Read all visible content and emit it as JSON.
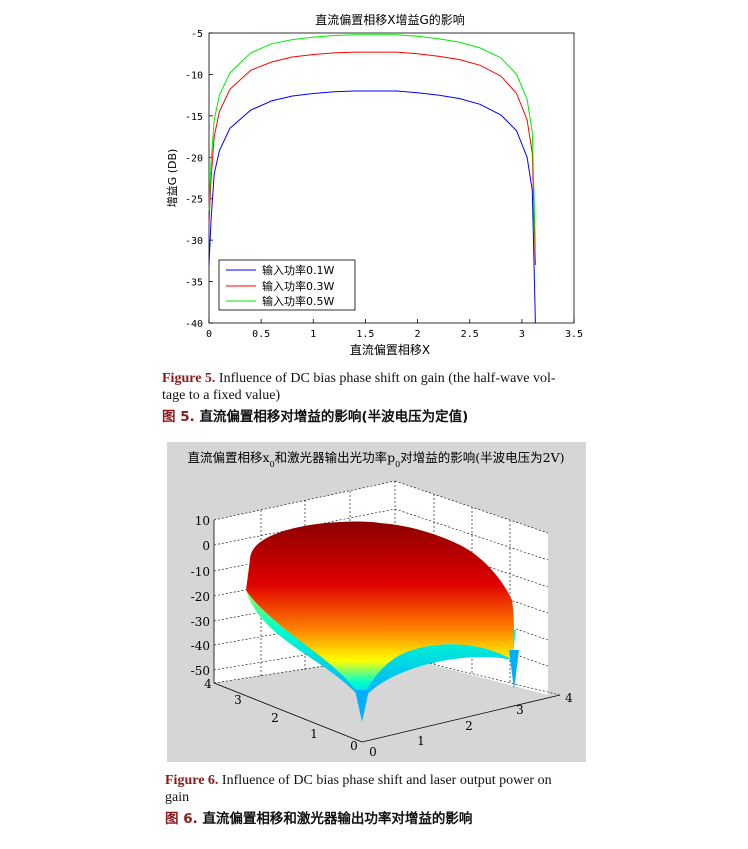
{
  "chart_data": [
    {
      "type": "line",
      "title": "直流偏置相移X增益G的影响",
      "xlabel": "直流偏置相移X",
      "ylabel": "增益G (DB)",
      "xlim": [
        0,
        3.5
      ],
      "ylim": [
        -40,
        -5
      ],
      "xticks": [
        "0",
        "0.5",
        "1",
        "1.5",
        "2",
        "2.5",
        "3",
        "3.5"
      ],
      "yticks": [
        "-5",
        "-10",
        "-15",
        "-20",
        "-25",
        "-30",
        "-35",
        "-40"
      ],
      "legend": "bottom-left",
      "series": [
        {
          "name": "输入功率0.1W",
          "color": "#0000ff",
          "peak": -12,
          "x": [
            0.0,
            0.02,
            0.05,
            0.1,
            0.2,
            0.4,
            0.6,
            0.8,
            1.0,
            1.2,
            1.4,
            1.57,
            1.8,
            2.0,
            2.2,
            2.4,
            2.6,
            2.8,
            2.95,
            3.05,
            3.1,
            3.13
          ],
          "y": [
            -33.0,
            -27.5,
            -22.0,
            -19.2,
            -16.5,
            -14.3,
            -13.2,
            -12.6,
            -12.3,
            -12.1,
            -12.0,
            -12.0,
            -12.0,
            -12.2,
            -12.5,
            -12.9,
            -13.6,
            -14.9,
            -16.8,
            -20.0,
            -24.0,
            -41.0
          ]
        },
        {
          "name": "输入功率0.3W",
          "color": "#ff0000",
          "peak": -7.3,
          "x": [
            0.0,
            0.02,
            0.05,
            0.1,
            0.2,
            0.4,
            0.6,
            0.8,
            1.0,
            1.2,
            1.4,
            1.57,
            1.8,
            2.0,
            2.2,
            2.4,
            2.6,
            2.8,
            2.95,
            3.05,
            3.1,
            3.13
          ],
          "y": [
            -28.0,
            -22.5,
            -17.5,
            -14.5,
            -11.8,
            -9.5,
            -8.5,
            -7.9,
            -7.6,
            -7.4,
            -7.3,
            -7.3,
            -7.3,
            -7.5,
            -7.8,
            -8.2,
            -8.9,
            -10.2,
            -12.3,
            -15.5,
            -19.5,
            -33.0
          ]
        },
        {
          "name": "输入功率0.5W",
          "color": "#00ee00",
          "peak": -5.2,
          "x": [
            0.0,
            0.02,
            0.05,
            0.1,
            0.2,
            0.4,
            0.6,
            0.8,
            1.0,
            1.2,
            1.4,
            1.57,
            1.8,
            2.0,
            2.2,
            2.4,
            2.6,
            2.8,
            2.95,
            3.05,
            3.1,
            3.13
          ],
          "y": [
            -26.5,
            -20.5,
            -15.5,
            -12.5,
            -9.8,
            -7.4,
            -6.3,
            -5.8,
            -5.5,
            -5.3,
            -5.2,
            -5.2,
            -5.2,
            -5.4,
            -5.7,
            -6.1,
            -6.8,
            -8.0,
            -10.0,
            -13.0,
            -17.0,
            -31.0
          ]
        }
      ]
    },
    {
      "type": "surface",
      "title_main": "直流偏置相移x",
      "title_sub1": "0",
      "title_mid": "和激光器输出光功率p",
      "title_sub2": "0",
      "title_end": "对增益的影响(半波电压为2V)",
      "xlim": [
        0,
        4
      ],
      "ylim": [
        0,
        4
      ],
      "zlim": [
        -50,
        10
      ],
      "x_ticks": [
        "0",
        "1",
        "2",
        "3",
        "4"
      ],
      "y_ticks": [
        "0",
        "1",
        "2",
        "3",
        "4"
      ],
      "z_ticks": [
        "10",
        "0",
        "-10",
        "-20",
        "-30",
        "-40",
        "-50"
      ],
      "grid": "on",
      "colormap": [
        "#00c0ff",
        "#00ffcc",
        "#ffff00",
        "#ff8000",
        "#e00000",
        "#8b0000"
      ]
    }
  ],
  "captions": {
    "fig5_label": "Figure 5.",
    "fig5_text_line1": "Influence of DC bias phase shift on gain (the half-wave vol-",
    "fig5_text_line2": "tage to a fixed value)",
    "fig5_cn_label": "图 5.",
    "fig5_cn_text": "直流偏置相移对增益的影响(半波电压为定值)",
    "fig6_label": "Figure 6.",
    "fig6_text_line1": "Influence of DC bias phase shift and laser output power on",
    "fig6_text_line2": "gain",
    "fig6_cn_label": "图 6.",
    "fig6_cn_text": "直流偏置相移和激光器输出功率对增益的影响"
  }
}
